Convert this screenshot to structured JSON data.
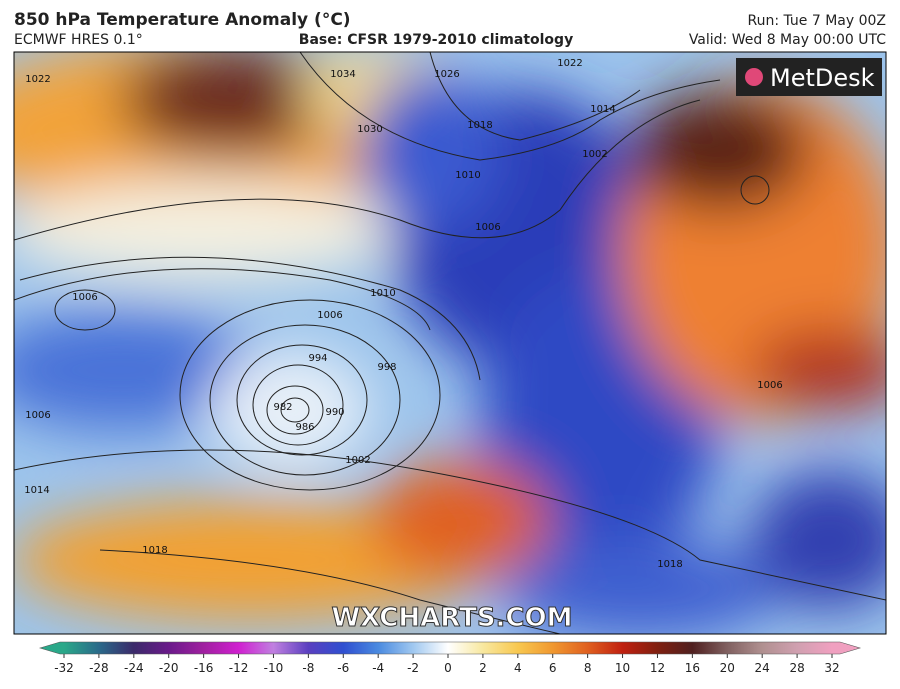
{
  "header": {
    "title": "850 hPa Temperature Anomaly (°C)",
    "model": "ECMWF HRES 0.1°",
    "base": "Base: CFSR 1979-2010 climatology",
    "run": "Run: Tue 7 May 00Z",
    "valid": "Valid: Wed 8 May 00:00 UTC"
  },
  "logo": "MetDesk",
  "watermark": "WXCHARTS.COM",
  "colorbar": {
    "ticks": [
      -32,
      -28,
      -24,
      -20,
      -16,
      -12,
      -10,
      -8,
      -6,
      -4,
      -2,
      0,
      2,
      4,
      6,
      8,
      10,
      12,
      16,
      20,
      24,
      28,
      32
    ]
  },
  "isobars": {
    "labels": [
      "1022",
      "1034",
      "1026",
      "1022",
      "1014",
      "1018",
      "1030",
      "1010",
      "1002",
      "1006",
      "1006",
      "1010",
      "1006",
      "994",
      "998",
      "982",
      "986",
      "990",
      "1002",
      "1006",
      "1014",
      "1018",
      "1006",
      "1018"
    ]
  }
}
